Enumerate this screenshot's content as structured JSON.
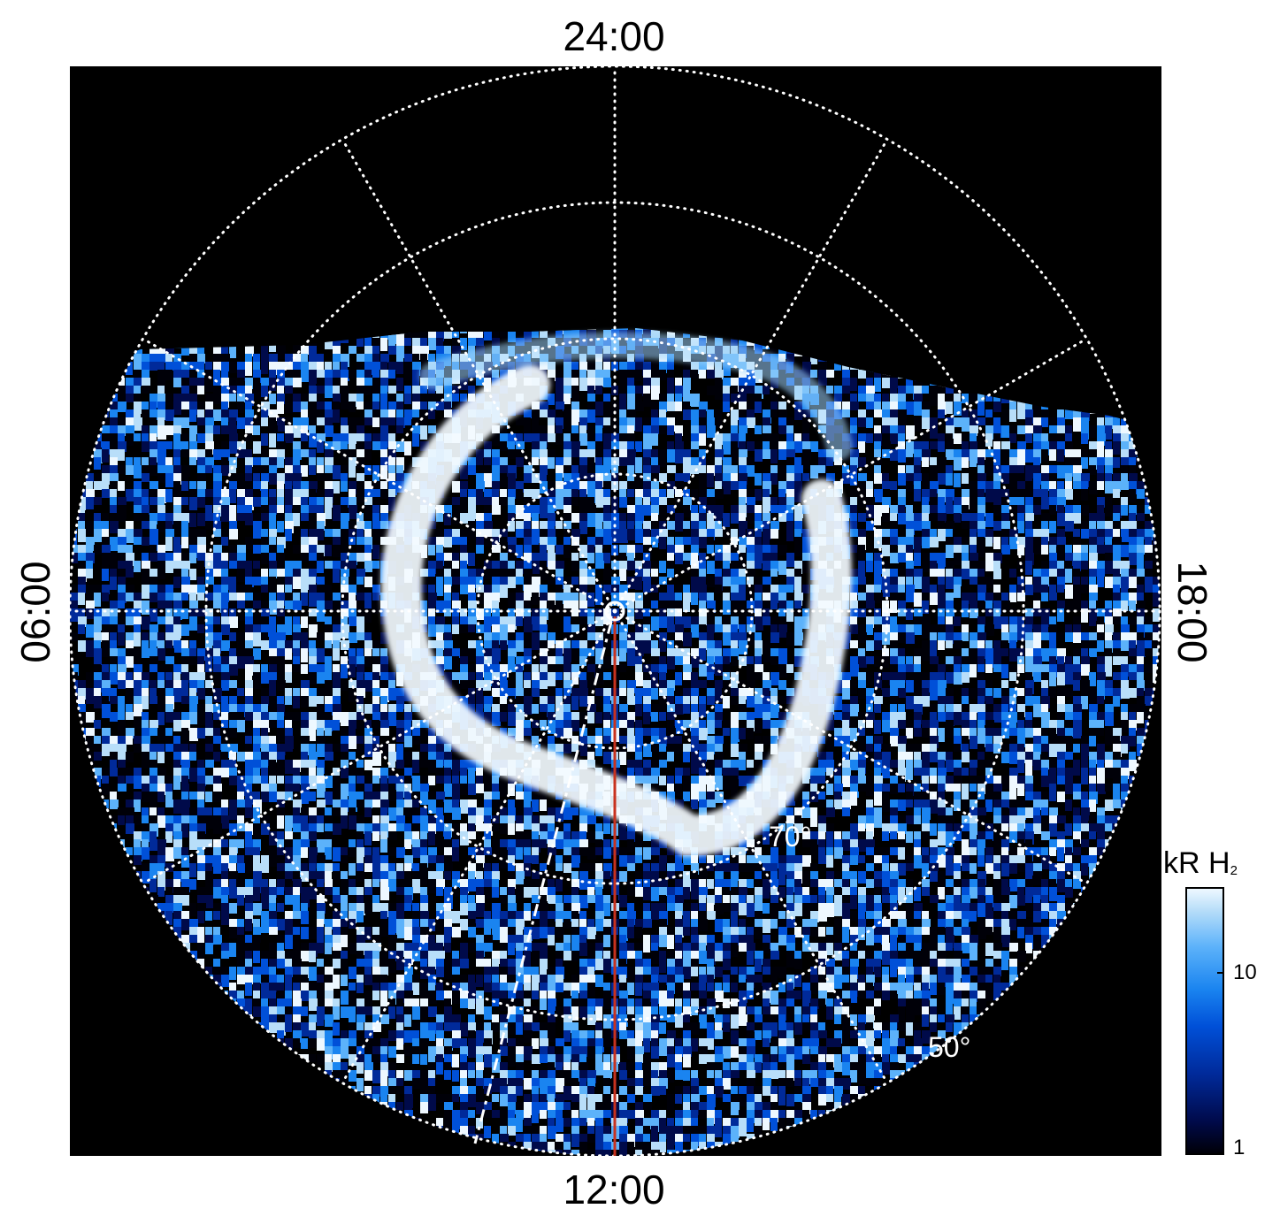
{
  "local_time_labels": {
    "top": "24:00",
    "bottom": "12:00",
    "left": "06:00",
    "right": "18:00"
  },
  "latitude_labels": {
    "inner": "70°",
    "outer": "50°"
  },
  "colorbar": {
    "unit": "kR H",
    "unit_subscript": "2",
    "ticks": [
      "10",
      "1"
    ],
    "colors": [
      "#000008",
      "#000a4a",
      "#002a9a",
      "#0050d8",
      "#1a84f0",
      "#5cb2fa",
      "#b8def9",
      "#eef8ff"
    ]
  },
  "colors": {
    "background": "#000000",
    "grid": "#ffffff",
    "meridian_line": "#c8321e",
    "aurora": "#f4fbff"
  }
}
